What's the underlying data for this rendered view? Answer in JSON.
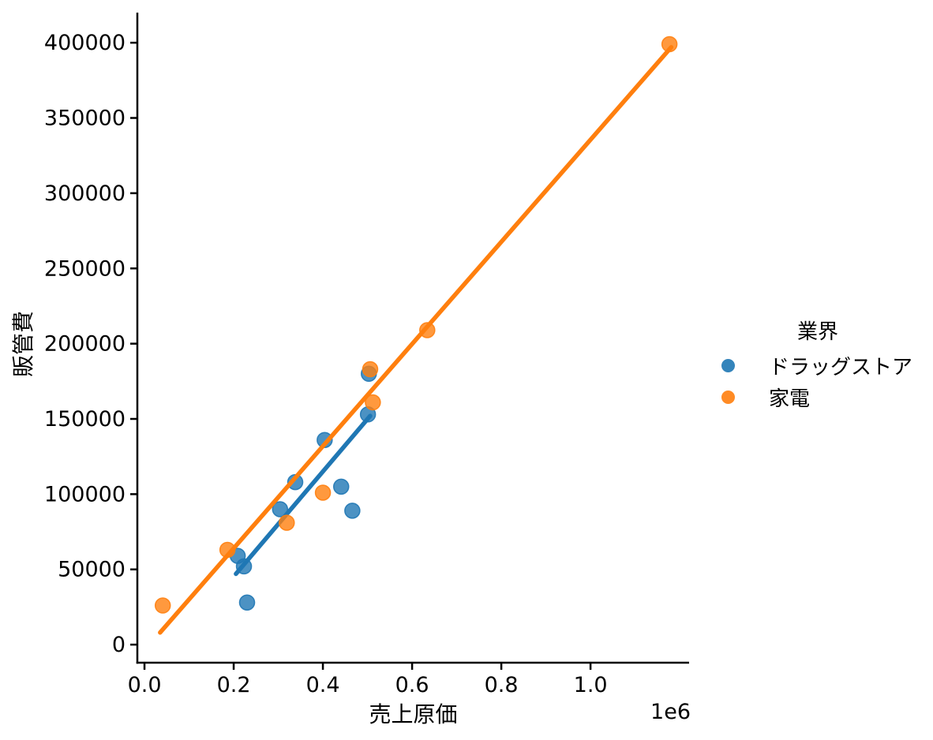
{
  "figure": {
    "background": "#ffffff",
    "text_color": "#000000",
    "spine_color": "#000000"
  },
  "chart_data": {
    "type": "scatter",
    "title": "",
    "xlabel": "売上原価",
    "ylabel": "販管費",
    "x_offset_label": "1e6",
    "xlim": [
      -16000,
      1221000
    ],
    "ylim": [
      -12000,
      420000
    ],
    "grid": false,
    "x_tick_values": [
      0,
      200000,
      400000,
      600000,
      800000,
      1000000
    ],
    "x_tick_labels": [
      "0.0",
      "0.2",
      "0.4",
      "0.6",
      "0.8",
      "1.0"
    ],
    "y_tick_values": [
      0,
      50000,
      100000,
      150000,
      200000,
      250000,
      300000,
      350000,
      400000
    ],
    "y_tick_labels": [
      "0",
      "50000",
      "100000",
      "150000",
      "200000",
      "250000",
      "300000",
      "350000",
      "400000"
    ],
    "legend": {
      "title": "業界",
      "position": "right-of-plot"
    },
    "series": [
      {
        "name": "ドラッグストア",
        "color": "#1f77b4",
        "marker": "circle",
        "points": [
          [
            503000,
            180000
          ],
          [
            501000,
            153000
          ],
          [
            404000,
            136000
          ],
          [
            441000,
            105000
          ],
          [
            338000,
            108000
          ],
          [
            466000,
            89000
          ],
          [
            304000,
            90000
          ],
          [
            209000,
            59000
          ],
          [
            223000,
            52000
          ],
          [
            230000,
            28000
          ]
        ],
        "regression_line": {
          "x1": 205000,
          "y1": 47000,
          "x2": 506000,
          "y2": 152000
        }
      },
      {
        "name": "家電",
        "color": "#ff7f0e",
        "marker": "circle",
        "points": [
          [
            1177000,
            399000
          ],
          [
            634000,
            209000
          ],
          [
            506000,
            183000
          ],
          [
            512000,
            161000
          ],
          [
            400000,
            101000
          ],
          [
            319000,
            81000
          ],
          [
            186000,
            63000
          ],
          [
            41000,
            26000
          ]
        ],
        "regression_line": {
          "x1": 35000,
          "y1": 8000,
          "x2": 1181000,
          "y2": 397000
        }
      }
    ]
  }
}
